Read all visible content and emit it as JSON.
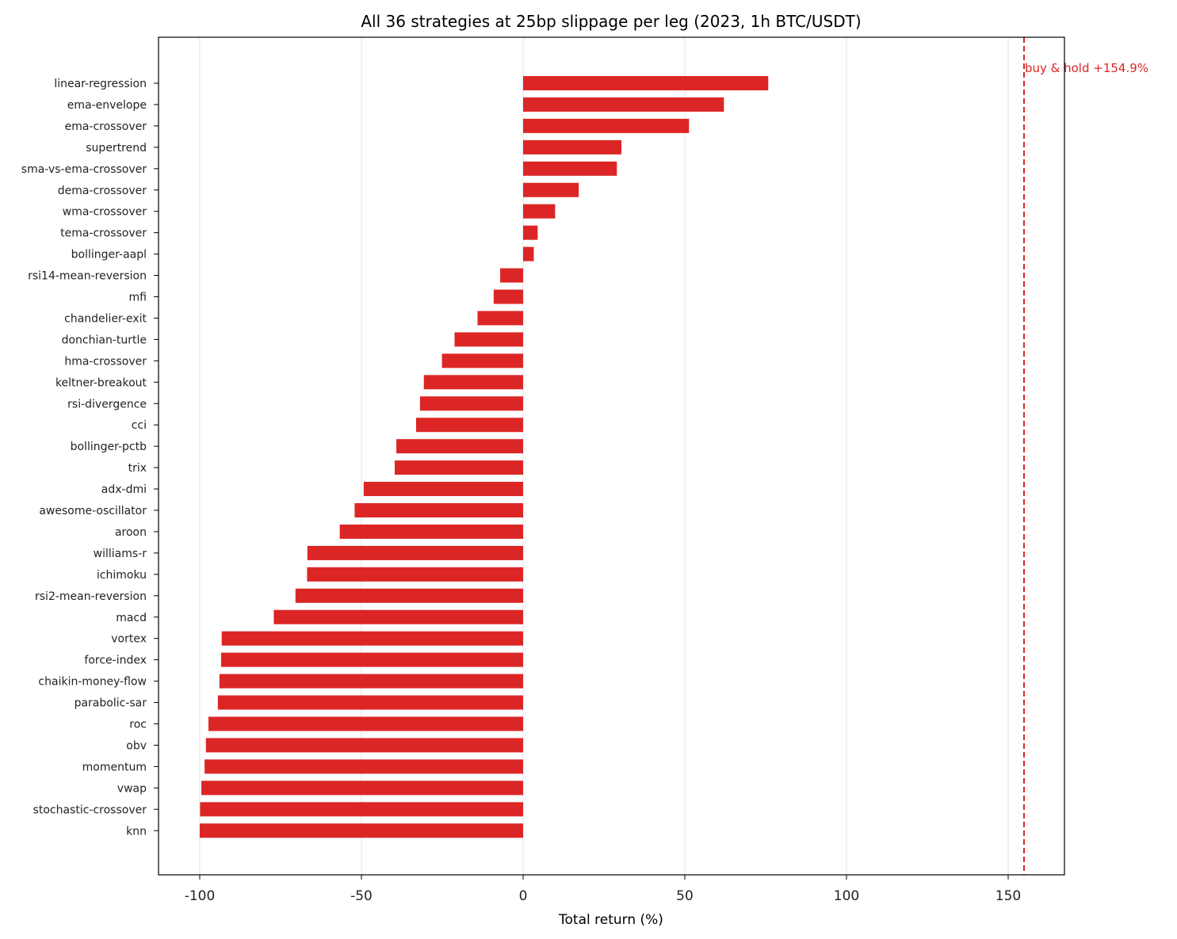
{
  "chart_data": {
    "type": "bar",
    "orientation": "horizontal",
    "title": "All 36 strategies at 25bp slippage per leg (2023, 1h BTC/USDT)",
    "xlabel": "Total return (%)",
    "ylabel": "",
    "xlim": [
      -112,
      168
    ],
    "xticks": [
      -100,
      -50,
      0,
      50,
      100,
      150
    ],
    "xtick_labels": [
      "-100",
      "-50",
      "0",
      "50",
      "100",
      "150"
    ],
    "grid": "vertical",
    "bar_color": "#dc2626",
    "categories": [
      "linear-regression",
      "ema-envelope",
      "ema-crossover",
      "supertrend",
      "sma-vs-ema-crossover",
      "dema-crossover",
      "wma-crossover",
      "tema-crossover",
      "bollinger-aapl",
      "rsi14-mean-reversion",
      "mfi",
      "chandelier-exit",
      "donchian-turtle",
      "hma-crossover",
      "keltner-breakout",
      "rsi-divergence",
      "cci",
      "bollinger-pctb",
      "trix",
      "adx-dmi",
      "awesome-oscillator",
      "aroon",
      "williams-r",
      "ichimoku",
      "rsi2-mean-reversion",
      "macd",
      "vortex",
      "force-index",
      "chaikin-money-flow",
      "parabolic-sar",
      "roc",
      "obv",
      "momentum",
      "vwap",
      "stochastic-crossover",
      "knn"
    ],
    "values": [
      75.8,
      62.1,
      51.3,
      30.4,
      29.0,
      17.2,
      9.9,
      4.5,
      3.3,
      -7.1,
      -9.1,
      -14.1,
      -21.2,
      -25.1,
      -30.7,
      -31.9,
      -33.1,
      -39.2,
      -39.7,
      -49.3,
      -52.1,
      -56.7,
      -66.7,
      -66.8,
      -70.4,
      -77.1,
      -93.2,
      -93.4,
      -93.9,
      -94.4,
      -97.3,
      -98.1,
      -98.5,
      -99.5,
      -99.9,
      -100.0
    ],
    "reference_line": {
      "value": 154.9,
      "label": "buy & hold +154.9%",
      "color": "#dc2626",
      "style": "dashed"
    }
  }
}
